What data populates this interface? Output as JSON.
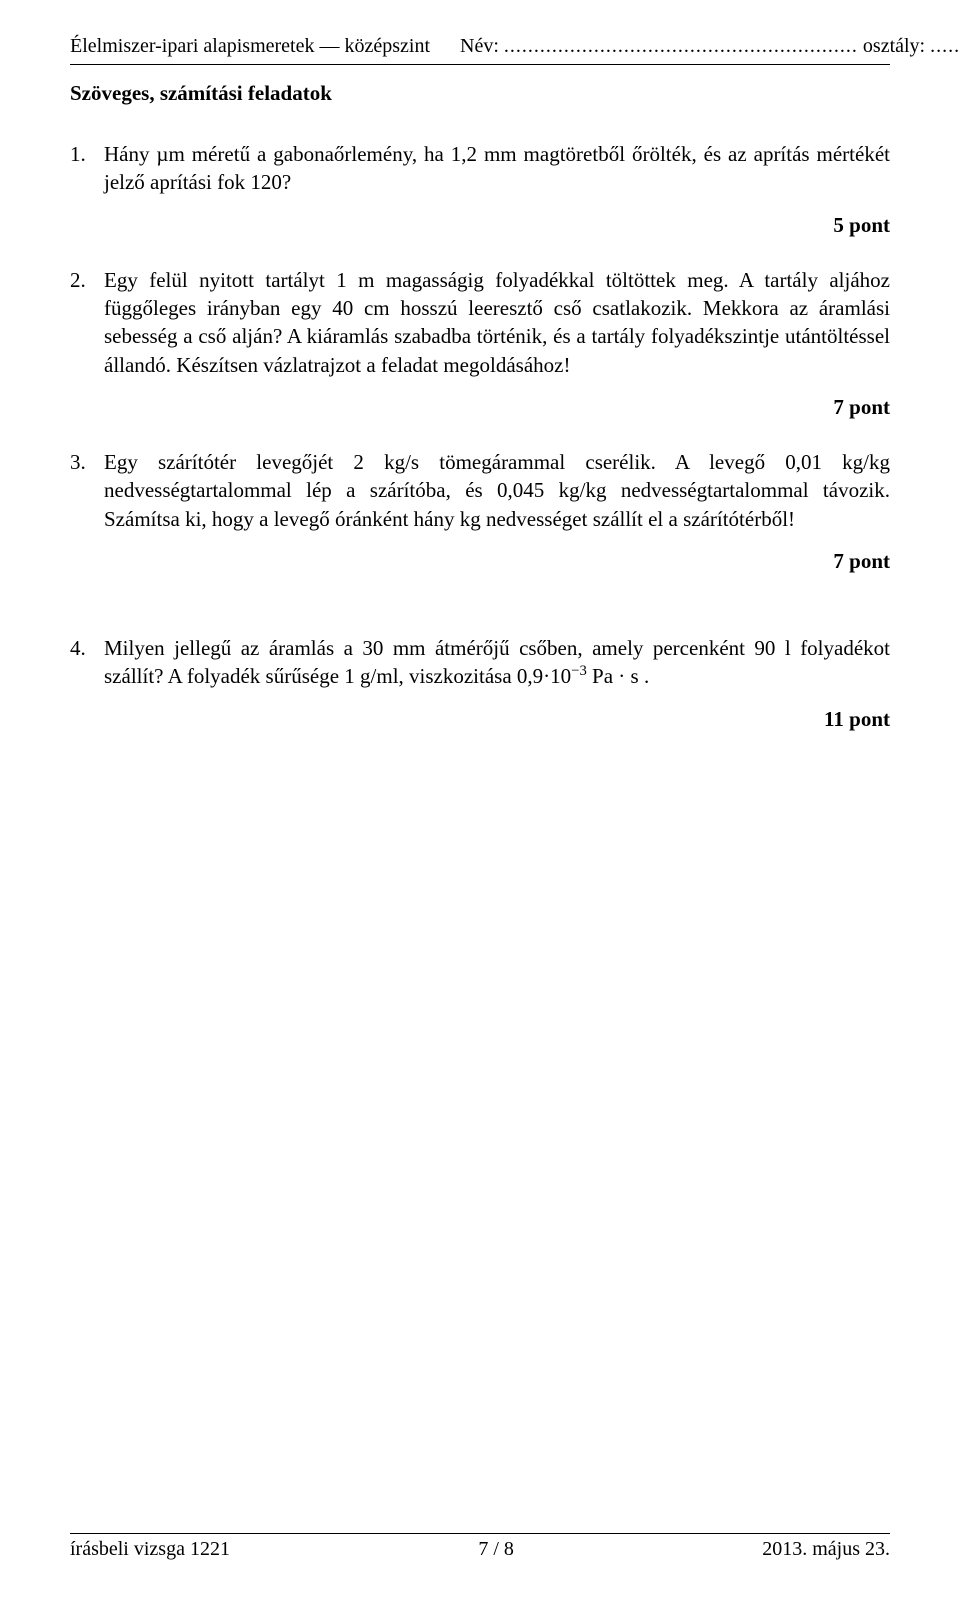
{
  "header": {
    "subject": "Élelmiszer-ipari alapismeretek — középszint",
    "name_label": "Név:",
    "name_dots": "...........................................................",
    "class_label": "osztály:",
    "class_dots": "......"
  },
  "section_title": "Szöveges, számítási feladatok",
  "tasks": [
    {
      "num": "1.",
      "text": "Hány µm méretű a gabonaőrlemény, ha 1,2 mm magtöretből őrölték, és az aprítás mértékét jelző aprítási fok 120?",
      "points": "5 pont"
    },
    {
      "num": "2.",
      "text": "Egy felül nyitott tartályt 1 m magasságig folyadékkal töltöttek meg. A tartály aljához függőleges irányban egy 40 cm hosszú leeresztő cső csatlakozik. Mekkora az áramlási sebesség a cső alján? A kiáramlás szabadba történik, és a tartály folyadékszintje utántöltéssel állandó. Készítsen vázlatrajzot a feladat megoldásához!",
      "points": "7 pont"
    },
    {
      "num": "3.",
      "text": "Egy szárítótér levegőjét 2 kg/s tömegárammal cserélik. A levegő 0,01 kg/kg nedvességtartalommal lép a szárítóba, és 0,045 kg/kg nedvességtartalommal távozik. Számítsa ki, hogy a levegő óránként hány kg nedvességet szállít el a szárítótérből!",
      "points": "7 pont"
    },
    {
      "num": "4.",
      "text_before": "Milyen jellegű az áramlás a 30 mm átmérőjű csőben, amely percenként 90 l folyadékot szállít? A folyadék sűrűsége 1 g/ml, viszkozitása 0,9·10",
      "exponent": "−3",
      "text_after": " Pa · s .",
      "points": "11 pont"
    }
  ],
  "footer": {
    "left": "írásbeli vizsga 1221",
    "center": "7 / 8",
    "right": "2013. május 23."
  }
}
